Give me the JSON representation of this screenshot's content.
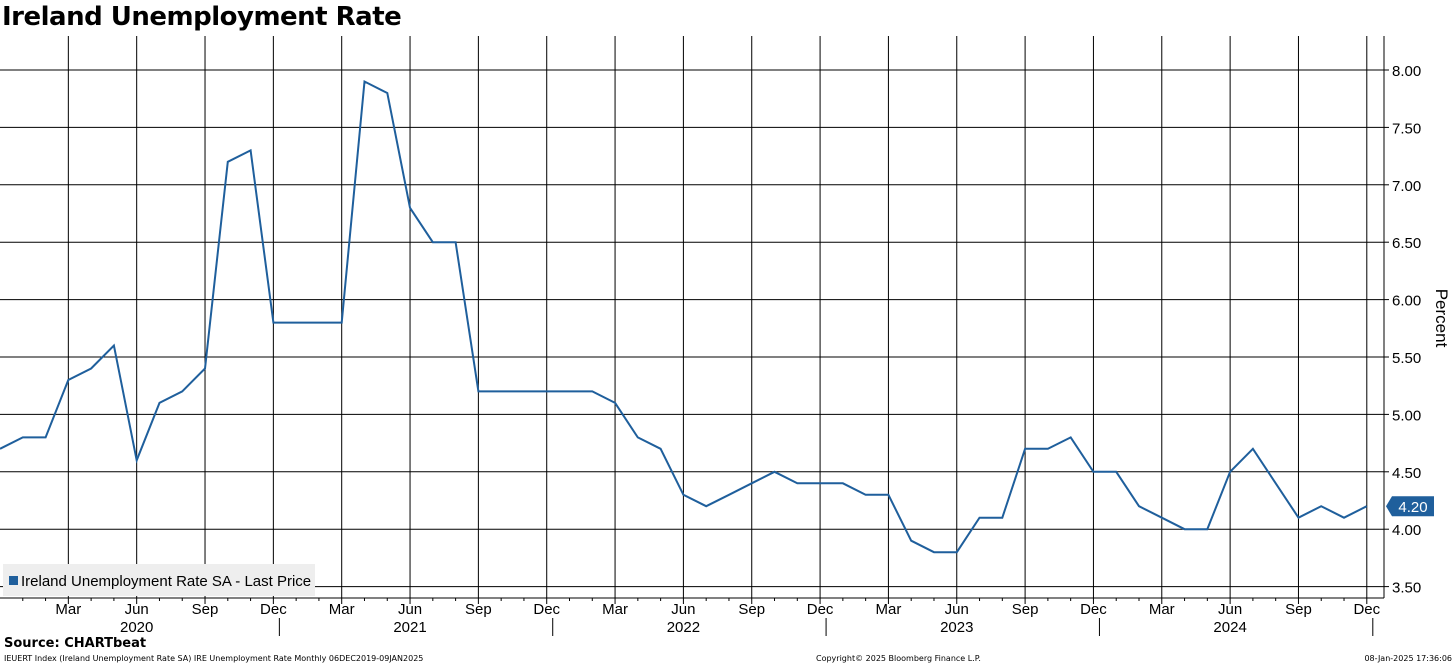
{
  "title": "Ireland Unemployment Rate",
  "source": "Source: CHARTbeat",
  "footer": {
    "left": "IEUERT Index (Ireland Unemployment Rate SA) IRE Unemployment Rate  Monthly 06DEC2019-09JAN2025",
    "center": "Copyright© 2025 Bloomberg Finance L.P.",
    "right": "08-Jan-2025 17:36:06"
  },
  "colors": {
    "series": "#1f5f9c",
    "grid": "#000000",
    "label_bg": "#1f5f9c"
  },
  "chart_data": {
    "type": "line",
    "title": "Ireland Unemployment Rate",
    "ylabel": "Percent",
    "ylim": [
      3.4,
      8.3
    ],
    "y_ticks": [
      "3.50",
      "4.00",
      "4.50",
      "5.00",
      "5.50",
      "6.00",
      "6.50",
      "7.00",
      "7.50",
      "8.00"
    ],
    "x_month_labels": [
      "Mar",
      "Jun",
      "Sep",
      "Dec",
      "Mar",
      "Jun",
      "Sep",
      "Dec",
      "Mar",
      "Jun",
      "Sep",
      "Dec",
      "Mar",
      "Jun",
      "Sep",
      "Dec",
      "Mar",
      "Jun",
      "Sep",
      "Dec"
    ],
    "x_year_labels": [
      "2020",
      "2021",
      "2022",
      "2023",
      "2024"
    ],
    "legend": "Ireland Unemployment Rate SA - Last Price",
    "legend_position": "bottom-left",
    "last_value_label": "4.20",
    "grid": true,
    "series": [
      {
        "name": "Ireland Unemployment Rate SA - Last Price",
        "x": [
          "2019-12",
          "2020-01",
          "2020-02",
          "2020-03",
          "2020-04",
          "2020-05",
          "2020-06",
          "2020-07",
          "2020-08",
          "2020-09",
          "2020-10",
          "2020-11",
          "2020-12",
          "2021-01",
          "2021-02",
          "2021-03",
          "2021-04",
          "2021-05",
          "2021-06",
          "2021-07",
          "2021-08",
          "2021-09",
          "2021-10",
          "2021-11",
          "2021-12",
          "2022-01",
          "2022-02",
          "2022-03",
          "2022-04",
          "2022-05",
          "2022-06",
          "2022-07",
          "2022-08",
          "2022-09",
          "2022-10",
          "2022-11",
          "2022-12",
          "2023-01",
          "2023-02",
          "2023-03",
          "2023-04",
          "2023-05",
          "2023-06",
          "2023-07",
          "2023-08",
          "2023-09",
          "2023-10",
          "2023-11",
          "2023-12",
          "2024-01",
          "2024-02",
          "2024-03",
          "2024-04",
          "2024-05",
          "2024-06",
          "2024-07",
          "2024-08",
          "2024-09",
          "2024-10",
          "2024-11",
          "2024-12"
        ],
        "values": [
          4.7,
          4.8,
          4.8,
          5.3,
          5.4,
          5.6,
          4.6,
          5.1,
          5.2,
          5.4,
          7.2,
          7.3,
          5.8,
          5.8,
          5.8,
          5.8,
          7.9,
          7.8,
          6.8,
          6.5,
          6.5,
          5.2,
          5.2,
          5.2,
          5.2,
          5.2,
          5.2,
          5.1,
          4.8,
          4.7,
          4.3,
          4.2,
          4.3,
          4.4,
          4.5,
          4.4,
          4.4,
          4.4,
          4.3,
          4.3,
          3.9,
          3.8,
          3.8,
          4.1,
          4.1,
          4.7,
          4.7,
          4.8,
          4.5,
          4.5,
          4.2,
          4.1,
          4.0,
          4.0,
          4.5,
          4.7,
          4.4,
          4.1,
          4.2,
          4.1,
          4.2
        ]
      }
    ]
  }
}
